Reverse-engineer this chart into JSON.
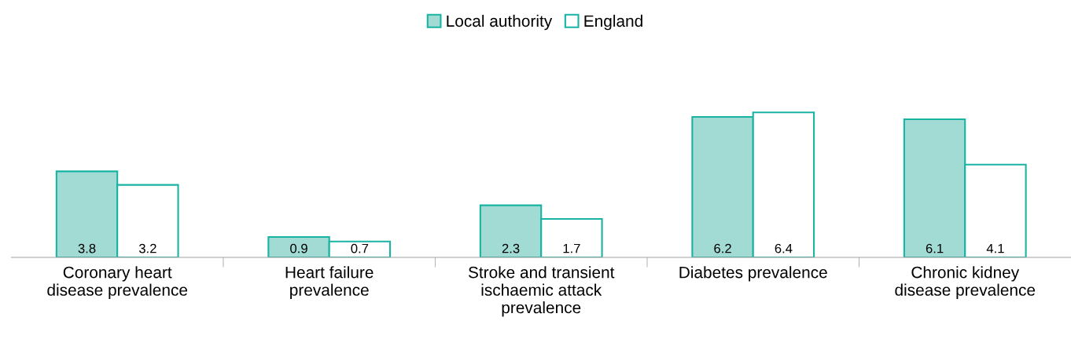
{
  "chart_data": {
    "type": "bar",
    "categories": [
      "Coronary heart\ndisease prevalence",
      "Heart failure\nprevalence",
      "Stroke and transient\nischaemic attack\nprevalence",
      "Diabetes prevalence",
      "Chronic kidney\ndisease prevalence"
    ],
    "series": [
      {
        "name": "Local authority",
        "color": "#a2dbd4",
        "values": [
          3.8,
          0.9,
          2.3,
          6.2,
          6.1
        ]
      },
      {
        "name": "England",
        "color": "#ffffff",
        "values": [
          3.2,
          0.7,
          1.7,
          6.4,
          4.1
        ]
      }
    ],
    "data_labels": true,
    "legend": "top",
    "grid": false
  }
}
